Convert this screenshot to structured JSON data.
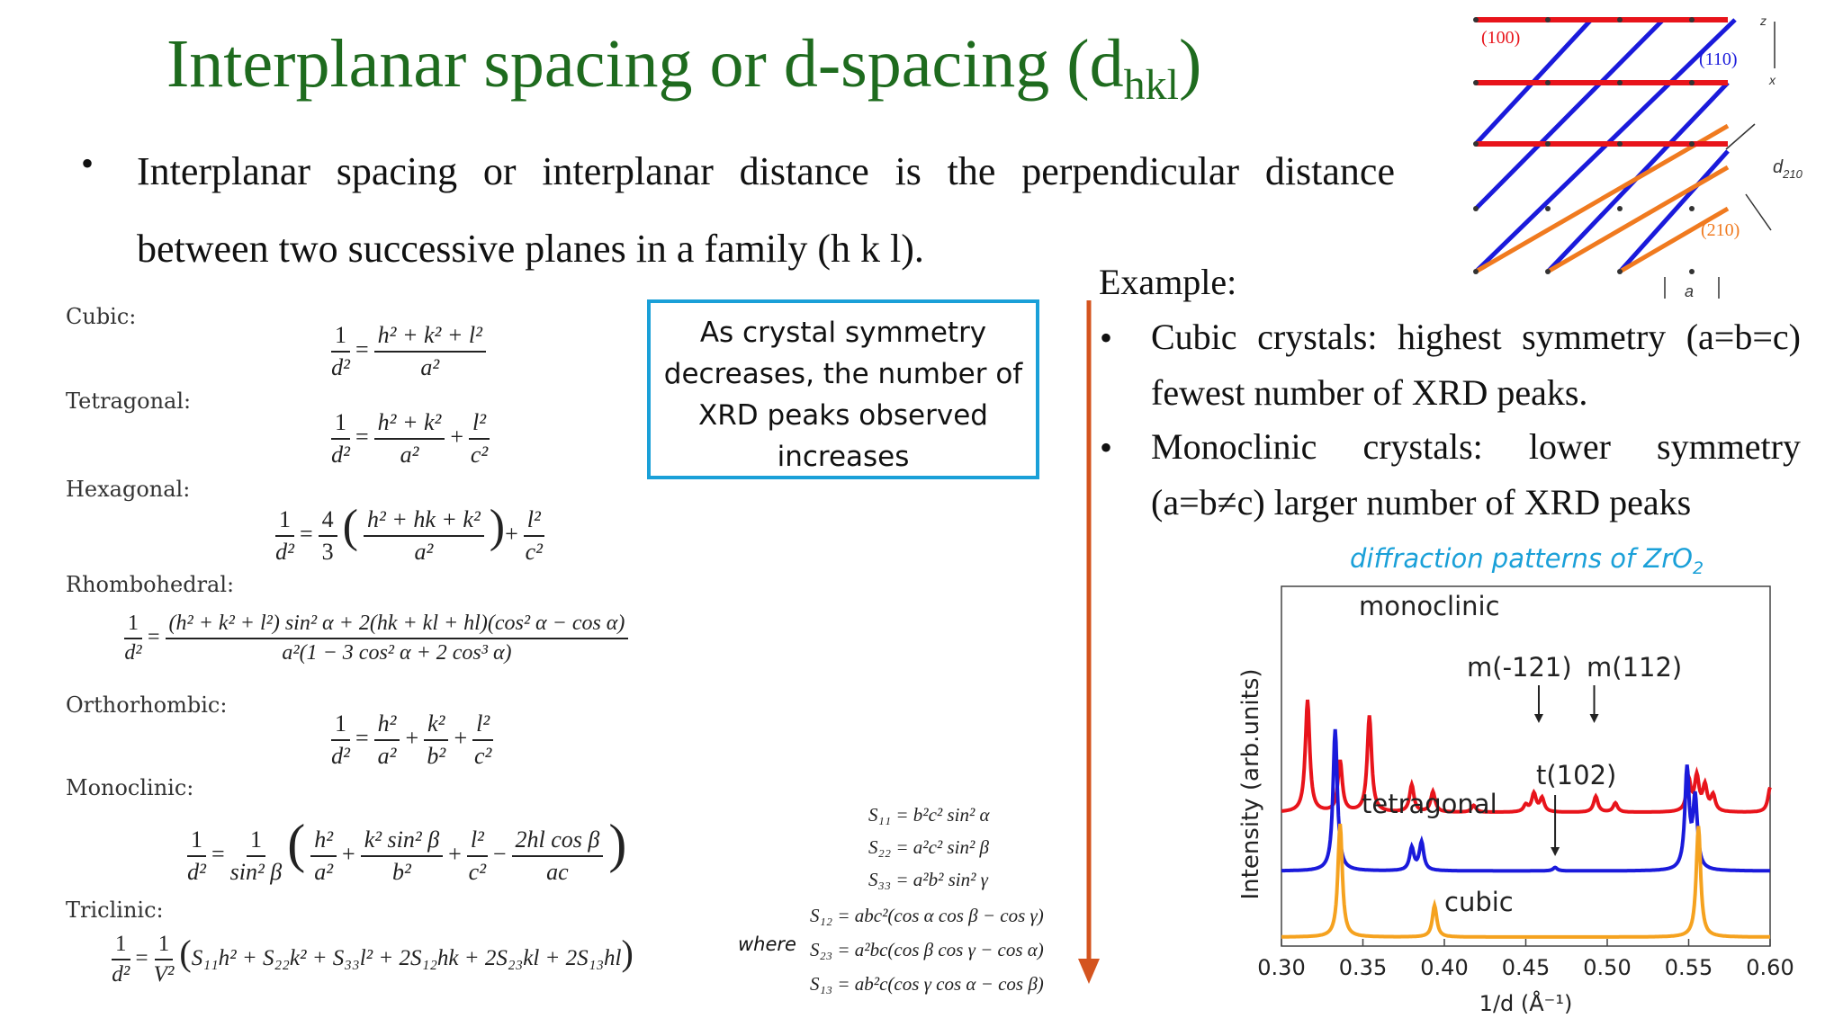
{
  "slide": {
    "title_main": "Interplanar spacing or d-spacing (d",
    "title_sub": "hkl",
    "title_close": ")",
    "bullet_text": "Interplanar spacing or interplanar distance is the perpendicular distance between two successive planes in a family (h k l)."
  },
  "formulas": {
    "cubic": "Cubic:",
    "tetragonal": "Tetragonal:",
    "hexagonal": "Hexagonal:",
    "rhombohedral": "Rhombohedral:",
    "orthorhombic": "Orthorhombic:",
    "monoclinic": "Monoclinic:",
    "triclinic": "Triclinic:",
    "where": "where",
    "s11": "S₁₁ = b²c² sin² α",
    "s22": "S₂₂ = a²c² sin² β",
    "s33": "S₃₃ = a²b² sin² γ",
    "s12": "S₁₂ = abc²(cos α cos β − cos γ)",
    "s23": "S₂₃ = a²bc(cos β cos γ − cos α)",
    "s13": "S₁₃ = ab²c(cos γ cos α − cos β)"
  },
  "callout": {
    "text": "As crystal symmetry decreases, the number of XRD peaks observed increases"
  },
  "example": {
    "heading": "Example:",
    "item1": "Cubic crystals: highest symmetry (a=b=c) fewest number of XRD peaks.",
    "item2": "Monoclinic crystals: lower symmetry (a=b≠c) larger number of XRD peaks"
  },
  "planes_diagram": {
    "label_100": "(100)",
    "label_110": "(110)",
    "label_210": "(210)",
    "label_d210": "d",
    "label_d210_sub": "210",
    "label_a": "a",
    "axis_z": "z",
    "axis_x": "x",
    "colors": {
      "p100": "#e8141b",
      "p110": "#1a1adb",
      "p210": "#f07a1f"
    }
  },
  "caption": {
    "text": "diffraction patterns of ZrO",
    "sub": "2"
  },
  "chart_data": {
    "type": "line",
    "xlabel": "1/d (Å⁻¹)",
    "ylabel": "Intensity (arb.units)",
    "xlim": [
      0.3,
      0.6
    ],
    "xticks": [
      "0.30",
      "0.35",
      "0.40",
      "0.45",
      "0.50",
      "0.55",
      "0.60"
    ],
    "series": [
      {
        "name": "monoclinic",
        "color": "#e8141b",
        "baseline": 0.66,
        "peaks": [
          [
            0.316,
            0.99
          ],
          [
            0.336,
            0.45
          ],
          [
            0.354,
            0.85
          ],
          [
            0.38,
            0.24
          ],
          [
            0.393,
            0.18
          ],
          [
            0.418,
            0.06
          ],
          [
            0.45,
            0.06
          ],
          [
            0.455,
            0.16
          ],
          [
            0.46,
            0.12
          ],
          [
            0.493,
            0.14
          ],
          [
            0.505,
            0.08
          ],
          [
            0.55,
            0.28
          ],
          [
            0.555,
            0.3
          ],
          [
            0.56,
            0.22
          ],
          [
            0.565,
            0.14
          ],
          [
            0.6,
            0.22
          ]
        ]
      },
      {
        "name": "tetragonal",
        "color": "#1a1adb",
        "baseline": 0.35,
        "peaks": [
          [
            0.333,
            1.25
          ],
          [
            0.38,
            0.2
          ],
          [
            0.386,
            0.25
          ],
          [
            0.468,
            0.03
          ],
          [
            0.549,
            0.88
          ],
          [
            0.554,
            0.62
          ]
        ]
      },
      {
        "name": "cubic",
        "color": "#f5a21f",
        "baseline": 0.0,
        "peaks": [
          [
            0.336,
            1.0
          ],
          [
            0.394,
            0.28
          ],
          [
            0.556,
            0.98
          ]
        ]
      }
    ],
    "annotations": [
      "monoclinic",
      "m(-121)",
      "m(112)",
      "tetragonal",
      "t(102)",
      "cubic"
    ]
  }
}
